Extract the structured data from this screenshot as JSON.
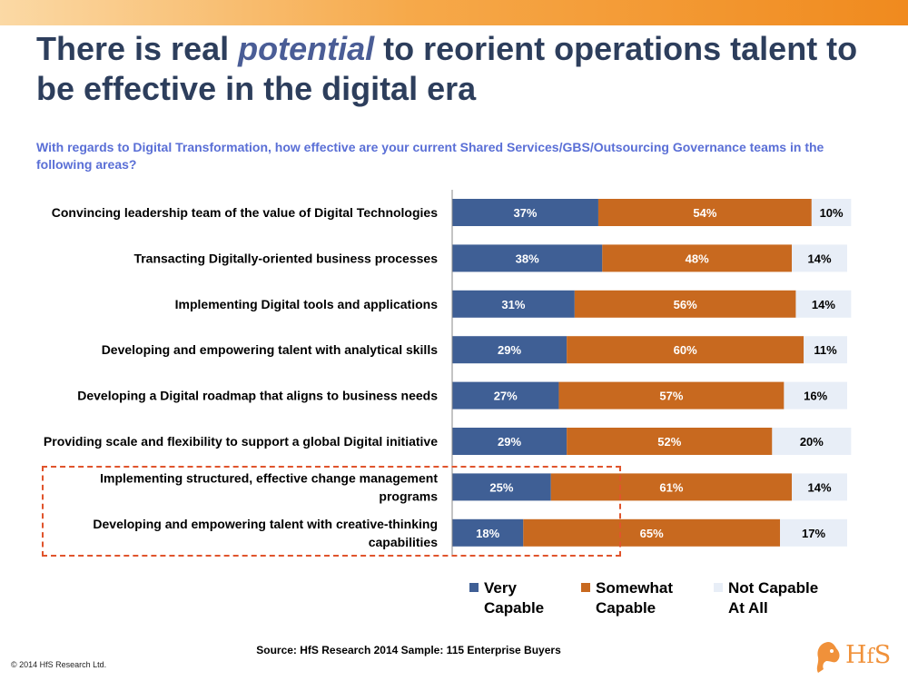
{
  "title": {
    "pre": "There is real ",
    "emph": "potential",
    "post": " to reorient operations talent to be effective in the digital era"
  },
  "subtitle": "With regards to Digital Transformation, how effective are your current Shared Services/GBS/Outsourcing Governance teams in the following areas?",
  "chart_data": {
    "type": "bar",
    "orientation": "horizontal",
    "stacked": true,
    "categories": [
      [
        "Convincing leadership team of the value of Digital Technologies"
      ],
      [
        "Transacting Digitally-oriented business processes"
      ],
      [
        "Implementing Digital tools and applications"
      ],
      [
        "Developing and empowering talent with analytical skills"
      ],
      [
        "Developing a Digital roadmap that aligns to business needs"
      ],
      [
        "Providing scale and flexibility to support a global Digital initiative"
      ],
      [
        "Implementing structured, effective change management",
        "programs"
      ],
      [
        "Developing and empowering talent with creative-thinking",
        "capabilities"
      ]
    ],
    "series": [
      {
        "name": "Very Capable",
        "color": "#3f5f95",
        "values": [
          37,
          38,
          31,
          29,
          27,
          29,
          25,
          18
        ]
      },
      {
        "name": "Somewhat Capable",
        "color": "#c8691f",
        "values": [
          54,
          48,
          56,
          60,
          57,
          52,
          61,
          65
        ]
      },
      {
        "name": "Not Capable At All",
        "color": "#e8eef7",
        "values": [
          10,
          14,
          14,
          11,
          16,
          20,
          14,
          17
        ]
      }
    ],
    "value_format": "percent",
    "highlighted_categories": [
      6,
      7
    ],
    "legend_position": "bottom"
  },
  "legend": [
    {
      "lines": [
        "Very",
        "Capable"
      ],
      "color": "#3f5f95"
    },
    {
      "lines": [
        "Somewhat",
        "Capable"
      ],
      "color": "#c8691f"
    },
    {
      "lines": [
        "Not Capable",
        "At All"
      ],
      "color": "#e8eef7"
    }
  ],
  "source": "Source:  HfS Research 2014  Sample: 115 Enterprise Buyers",
  "copyright": "© 2014 HfS Research Ltd.",
  "logo": {
    "text": "HfS"
  }
}
